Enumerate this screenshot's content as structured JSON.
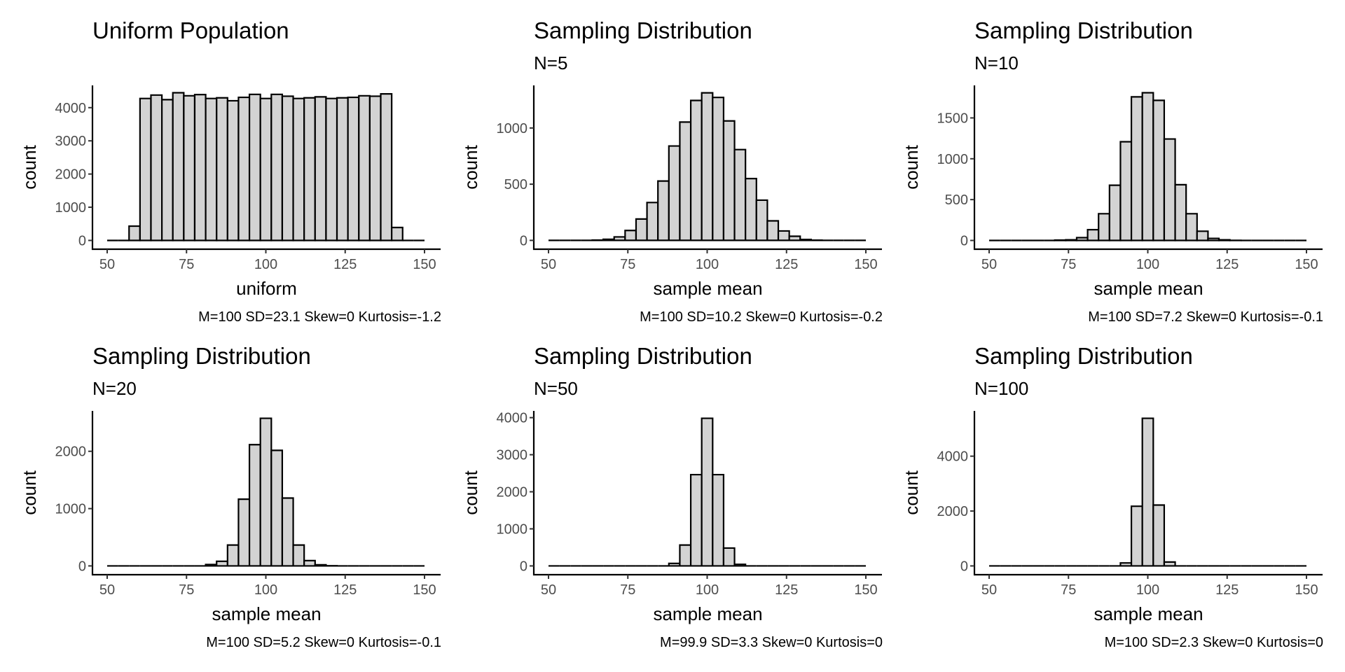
{
  "chart_data": [
    {
      "type": "bar",
      "title": "Uniform Population",
      "subtitle": "",
      "xlabel": "uniform",
      "ylabel": "count",
      "caption": "M=100 SD=23.1 Skew=0 Kurtosis=-1.2",
      "bin_range": [
        50,
        150
      ],
      "bins": 29,
      "xticks": [
        50,
        75,
        100,
        125,
        150
      ],
      "yticks": [
        0,
        1000,
        2000,
        3000,
        4000
      ],
      "ylim": [
        -222,
        4670
      ],
      "counts": [
        0,
        0,
        430,
        4276,
        4379,
        4241,
        4448,
        4358,
        4393,
        4276,
        4296,
        4207,
        4310,
        4400,
        4276,
        4400,
        4345,
        4276,
        4296,
        4324,
        4276,
        4296,
        4310,
        4358,
        4345,
        4414,
        390,
        0,
        0
      ],
      "grid": false
    },
    {
      "type": "bar",
      "title": "Sampling Distribution",
      "subtitle": "N=5",
      "xlabel": "sample mean",
      "ylabel": "count",
      "caption": "M=100 SD=10.2 Skew=0 Kurtosis=-0.2",
      "bin_range": [
        50,
        150
      ],
      "bins": 29,
      "xticks": [
        50,
        75,
        100,
        125,
        150
      ],
      "yticks": [
        0,
        500,
        1000
      ],
      "ylim": [
        -66,
        1379
      ],
      "counts": [
        0,
        0,
        0,
        0,
        3,
        10,
        31,
        88,
        190,
        337,
        528,
        840,
        1053,
        1245,
        1313,
        1272,
        1063,
        808,
        550,
        358,
        174,
        84,
        37,
        8,
        2,
        0,
        0,
        0,
        0
      ],
      "grid": false
    },
    {
      "type": "bar",
      "title": "Sampling Distribution",
      "subtitle": "N=10",
      "xlabel": "sample mean",
      "ylabel": "count",
      "caption": "M=100 SD=7.2 Skew=0 Kurtosis=-0.1",
      "bin_range": [
        50,
        150
      ],
      "bins": 29,
      "xticks": [
        50,
        75,
        100,
        125,
        150
      ],
      "yticks": [
        0,
        500,
        1000,
        1500
      ],
      "ylim": [
        -90,
        1898
      ],
      "counts": [
        0,
        0,
        0,
        0,
        0,
        0,
        5,
        8,
        34,
        132,
        327,
        676,
        1208,
        1758,
        1808,
        1715,
        1242,
        682,
        327,
        113,
        25,
        8,
        1,
        0,
        0,
        0,
        0,
        0,
        0
      ],
      "grid": false
    },
    {
      "type": "bar",
      "title": "Sampling Distribution",
      "subtitle": "N=20",
      "xlabel": "sample mean",
      "ylabel": "count",
      "caption": "M=100 SD=5.2 Skew=0 Kurtosis=-0.1",
      "bin_range": [
        50,
        150
      ],
      "bins": 29,
      "xticks": [
        50,
        75,
        100,
        125,
        150
      ],
      "yticks": [
        0,
        1000,
        2000
      ],
      "ylim": [
        -129,
        2705
      ],
      "counts": [
        0,
        0,
        0,
        0,
        0,
        0,
        0,
        0,
        0,
        24,
        80,
        364,
        1164,
        2116,
        2576,
        2016,
        1184,
        364,
        92,
        20,
        2,
        0,
        0,
        0,
        0,
        0,
        0,
        0,
        0
      ],
      "grid": false
    },
    {
      "type": "bar",
      "title": "Sampling Distribution",
      "subtitle": "N=50",
      "xlabel": "sample mean",
      "ylabel": "count",
      "caption": "M=99.9 SD=3.3 Skew=0 Kurtosis=0",
      "bin_range": [
        50,
        150
      ],
      "bins": 29,
      "xticks": [
        50,
        75,
        100,
        125,
        150
      ],
      "yticks": [
        0,
        1000,
        2000,
        3000,
        4000
      ],
      "ylim": [
        -199,
        4182
      ],
      "counts": [
        0,
        0,
        0,
        0,
        0,
        0,
        0,
        0,
        0,
        0,
        0,
        68,
        563,
        2462,
        3983,
        2462,
        482,
        43,
        0,
        0,
        0,
        0,
        0,
        0,
        0,
        0,
        0,
        0,
        0
      ],
      "grid": false
    },
    {
      "type": "bar",
      "title": "Sampling Distribution",
      "subtitle": "N=100",
      "xlabel": "sample mean",
      "ylabel": "count",
      "caption": "M=100 SD=2.3 Skew=0 Kurtosis=0",
      "bin_range": [
        50,
        150
      ],
      "bins": 29,
      "xticks": [
        50,
        75,
        100,
        125,
        150
      ],
      "yticks": [
        0,
        2000,
        4000
      ],
      "ylim": [
        -269,
        5650
      ],
      "counts": [
        0,
        0,
        0,
        0,
        0,
        0,
        0,
        0,
        0,
        0,
        0,
        0,
        109,
        2176,
        5381,
        2218,
        142,
        0,
        0,
        0,
        0,
        0,
        0,
        0,
        0,
        0,
        0,
        0,
        0
      ],
      "grid": false
    }
  ],
  "colors": {
    "bar_fill": "#d3d3d3",
    "bar_outline": "#000000",
    "tick_text": "#4d4d4d"
  }
}
